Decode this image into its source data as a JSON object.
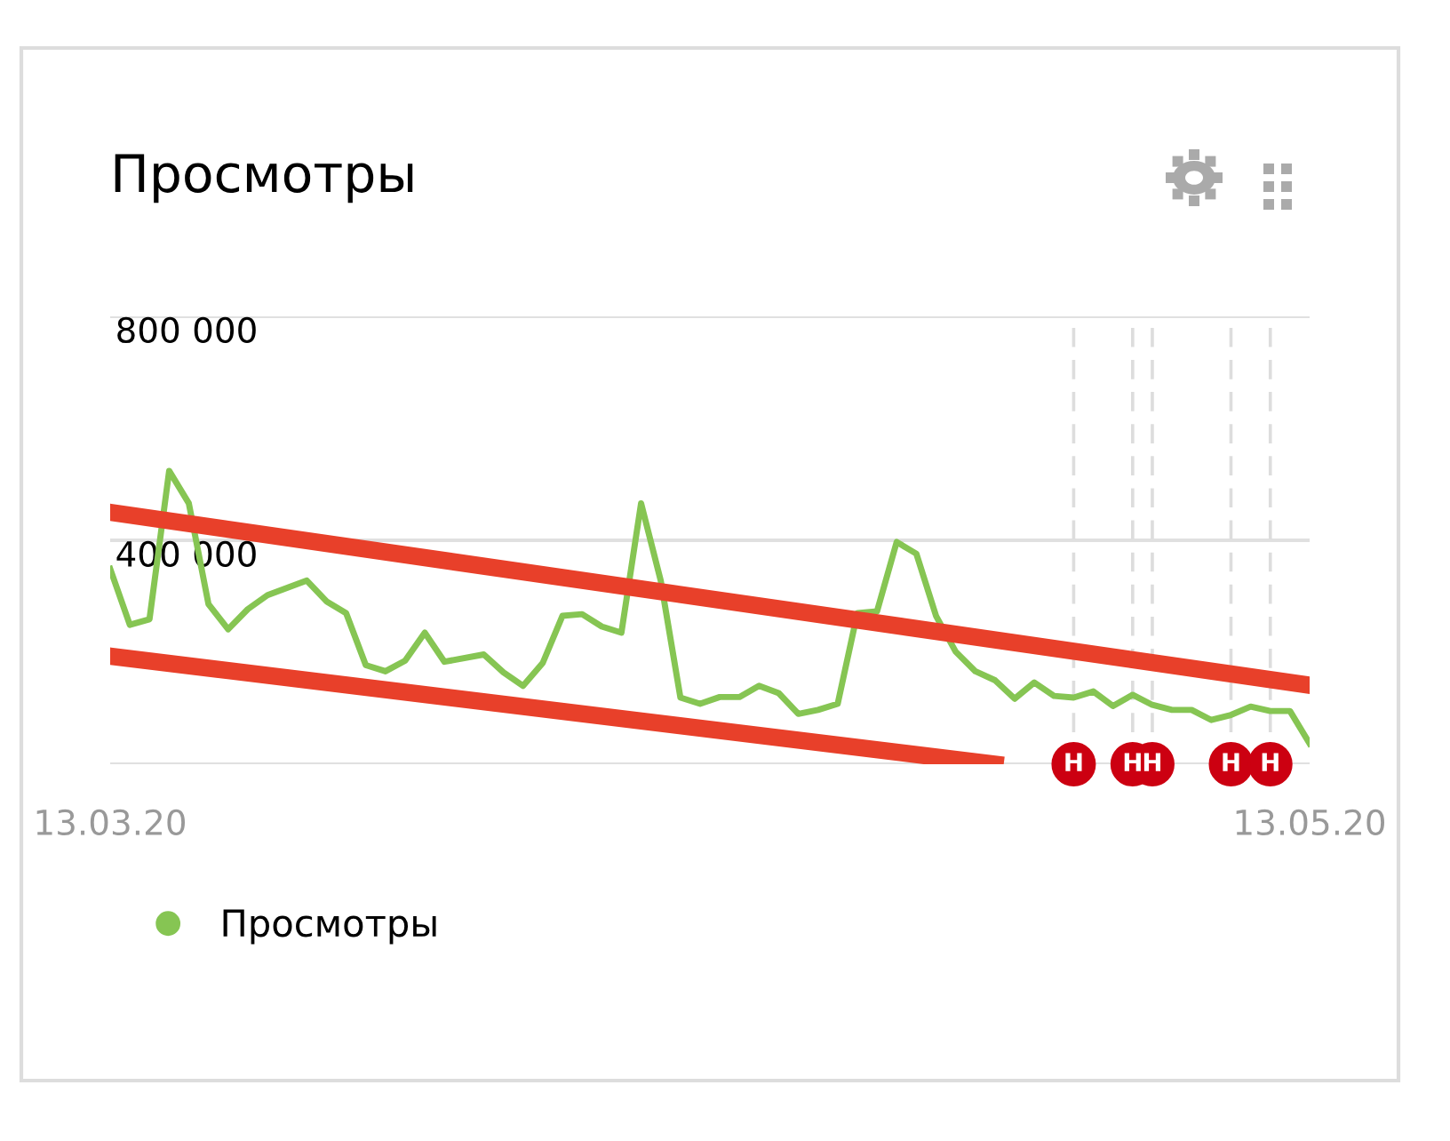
{
  "chart_data": {
    "type": "line",
    "title": "Просмотры",
    "xlim": [
      "2020-03-13",
      "2020-05-13"
    ],
    "xticks": [
      {
        "value": "2020-03-13",
        "label": "13.03.20"
      },
      {
        "value": "2020-05-13",
        "label": "13.05.20"
      }
    ],
    "ylim": [
      0,
      800000
    ],
    "yticks": [
      {
        "value": 0,
        "label": null
      },
      {
        "value": 400000,
        "label": "400 000"
      },
      {
        "value": 800000,
        "label": "800 000"
      }
    ],
    "grid": "y",
    "legend": "bottom left",
    "marker": "none",
    "line_style": "solid",
    "series": [
      {
        "name": "Просмотры",
        "color": "#86c553",
        "x": [
          "2020-03-13",
          "2020-03-14",
          "2020-03-15",
          "2020-03-16",
          "2020-03-17",
          "2020-03-18",
          "2020-03-19",
          "2020-03-20",
          "2020-03-21",
          "2020-03-23",
          "2020-03-24",
          "2020-03-25",
          "2020-03-26",
          "2020-03-27",
          "2020-03-28",
          "2020-03-29",
          "2020-03-30",
          "2020-04-01",
          "2020-04-02",
          "2020-04-03",
          "2020-04-04",
          "2020-04-05",
          "2020-04-06",
          "2020-04-07",
          "2020-04-08",
          "2020-04-09",
          "2020-04-10",
          "2020-04-11",
          "2020-04-12",
          "2020-04-13",
          "2020-04-14",
          "2020-04-15",
          "2020-04-16",
          "2020-04-17",
          "2020-04-18",
          "2020-04-19",
          "2020-04-20",
          "2020-04-21",
          "2020-04-22",
          "2020-04-23",
          "2020-04-24",
          "2020-04-25",
          "2020-04-26",
          "2020-04-27",
          "2020-04-28",
          "2020-04-29",
          "2020-04-30",
          "2020-05-01",
          "2020-05-02",
          "2020-05-03",
          "2020-05-04",
          "2020-05-05",
          "2020-05-06",
          "2020-05-07",
          "2020-05-08",
          "2020-05-09",
          "2020-05-10",
          "2020-05-11",
          "2020-05-12",
          "2020-05-13"
        ],
        "values": [
          349000,
          249000,
          259000,
          524000,
          466000,
          286000,
          241000,
          277000,
          302000,
          328000,
          291000,
          270000,
          177000,
          166000,
          185000,
          235000,
          183000,
          196000,
          164000,
          140000,
          181000,
          265000,
          268000,
          246000,
          235000,
          466000,
          328000,
          119000,
          108000,
          120000,
          120000,
          140000,
          127000,
          90000,
          97000,
          108000,
          270000,
          273000,
          397000,
          376000,
          265000,
          201000,
          166000,
          150000,
          117000,
          146000,
          122000,
          119000,
          130000,
          104000,
          124000,
          106000,
          97000,
          97000,
          79000,
          88000,
          103000,
          95000,
          95000,
          37000
        ]
      },
      {
        "type": "line",
        "color": "#e8402a",
        "x": [
          "2020-03-13",
          "2020-05-13"
        ],
        "values": [
          450000,
          141000
        ]
      },
      {
        "type": "line",
        "color": "#e8402a",
        "x": [
          "2020-03-13",
          "2020-04-27"
        ],
        "values": [
          193000,
          0
        ]
      }
    ],
    "ref_lines": [
      {
        "axis": "x",
        "value": "2020-05-01",
        "label": "Н",
        "color": "#dddddd",
        "line_style": "dashed"
      },
      {
        "axis": "x",
        "value": "2020-05-04",
        "label": "Н",
        "color": "#dddddd",
        "line_style": "dashed"
      },
      {
        "axis": "x",
        "value": "2020-05-05",
        "label": "Н",
        "color": "#dddddd",
        "line_style": "dashed"
      },
      {
        "axis": "x",
        "value": "2020-05-09",
        "label": "Н",
        "color": "#dddddd",
        "line_style": "dashed"
      },
      {
        "axis": "x",
        "value": "2020-05-11",
        "label": "Н",
        "color": "#dddddd",
        "line_style": "dashed"
      }
    ]
  }
}
